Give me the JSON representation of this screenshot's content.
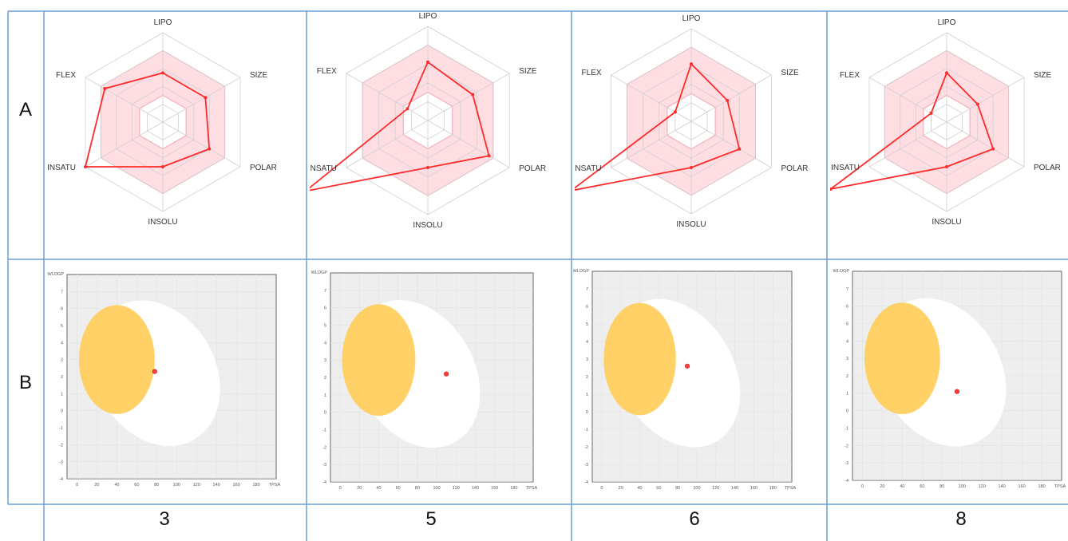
{
  "row_labels": [
    "A",
    "B"
  ],
  "compounds": [
    "3",
    "5",
    "6",
    "8"
  ],
  "radar_axes": [
    "LIPO",
    "SIZE",
    "POLAR",
    "INSOLU",
    "INSATU",
    "FLEX"
  ],
  "boiled_egg_axes": {
    "x_label": "TPSA",
    "y_label": "WLOGP",
    "x_ticks": [
      "0",
      "20",
      "40",
      "60",
      "80",
      "100",
      "120",
      "140",
      "160",
      "180"
    ],
    "y_ticks": [
      "-4",
      "-3",
      "-2",
      "-1",
      "0",
      "1",
      "2",
      "3",
      "4",
      "5",
      "6",
      "7"
    ]
  },
  "colors": {
    "grid_border": "#6a9fd8",
    "radar_line": "#ff2a2a",
    "radar_band": "#ffd6dc",
    "egg_white": "#ffffff",
    "egg_yolk": "#ffcc55",
    "plot_bg": "#eeeeee",
    "point": "#ff3b3b"
  },
  "chart_data": [
    {
      "type": "radar",
      "compound": "3",
      "axes": [
        "LIPO",
        "SIZE",
        "POLAR",
        "INSOLU",
        "INSATU",
        "FLEX"
      ],
      "values": [
        0.55,
        0.55,
        0.6,
        0.5,
        1.0,
        0.75
      ],
      "band": [
        0.3,
        0.8
      ]
    },
    {
      "type": "radar",
      "compound": "5",
      "axes": [
        "LIPO",
        "SIZE",
        "POLAR",
        "INSOLU",
        "INSATU",
        "FLEX"
      ],
      "values": [
        0.62,
        0.55,
        0.75,
        0.5,
        1.5,
        0.25
      ],
      "band": [
        0.3,
        0.8
      ]
    },
    {
      "type": "radar",
      "compound": "6",
      "axes": [
        "LIPO",
        "SIZE",
        "POLAR",
        "INSOLU",
        "INSATU",
        "FLEX"
      ],
      "values": [
        0.62,
        0.45,
        0.6,
        0.5,
        1.5,
        0.2
      ],
      "band": [
        0.3,
        0.8
      ]
    },
    {
      "type": "radar",
      "compound": "8",
      "axes": [
        "LIPO",
        "SIZE",
        "POLAR",
        "INSOLU",
        "INSATU",
        "FLEX"
      ],
      "values": [
        0.55,
        0.4,
        0.6,
        0.5,
        1.5,
        0.2
      ],
      "band": [
        0.3,
        0.8
      ]
    },
    {
      "type": "scatter",
      "compound": "3",
      "xlabel": "TPSA",
      "ylabel": "WLOGP",
      "xlim": [
        -10,
        200
      ],
      "ylim": [
        -4,
        8
      ],
      "points": [
        {
          "x": 78,
          "y": 2.3
        }
      ]
    },
    {
      "type": "scatter",
      "compound": "5",
      "xlabel": "TPSA",
      "ylabel": "WLOGP",
      "xlim": [
        -10,
        200
      ],
      "ylim": [
        -4,
        8
      ],
      "points": [
        {
          "x": 110,
          "y": 2.2
        }
      ]
    },
    {
      "type": "scatter",
      "compound": "6",
      "xlabel": "TPSA",
      "ylabel": "WLOGP",
      "xlim": [
        -10,
        200
      ],
      "ylim": [
        -4,
        8
      ],
      "points": [
        {
          "x": 90,
          "y": 2.6
        }
      ]
    },
    {
      "type": "scatter",
      "compound": "8",
      "xlabel": "TPSA",
      "ylabel": "WLOGP",
      "xlim": [
        -10,
        200
      ],
      "ylim": [
        -4,
        8
      ],
      "points": [
        {
          "x": 95,
          "y": 1.1
        }
      ]
    }
  ]
}
